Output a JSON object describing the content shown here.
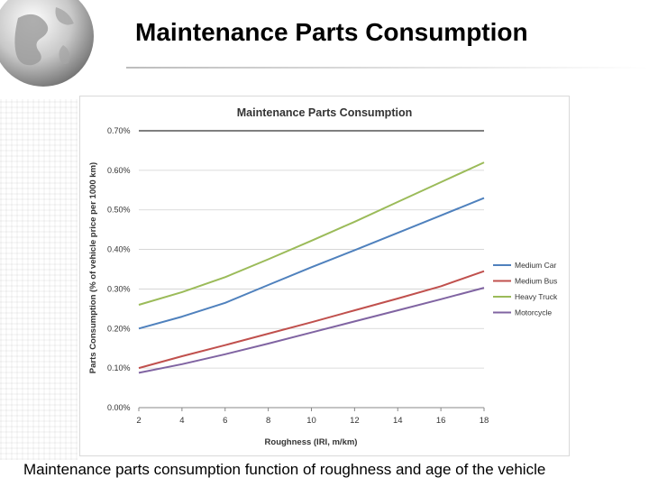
{
  "slide": {
    "title": "Maintenance Parts Consumption",
    "caption": "Maintenance parts consumption function of roughness and age of the vehicle"
  },
  "chart_data": {
    "type": "line",
    "title": "Maintenance Parts Consumption",
    "xlabel": "Roughness (IRI, m/km)",
    "ylabel": "Parts Consumption (% of vehicle price per 1000 km)",
    "xlim": [
      2,
      18
    ],
    "ylim": [
      0,
      0.7
    ],
    "x_ticks": [
      "2",
      "4",
      "6",
      "8",
      "10",
      "12",
      "14",
      "16",
      "18"
    ],
    "y_ticks": [
      "0.00%",
      "0.10%",
      "0.20%",
      "0.30%",
      "0.40%",
      "0.50%",
      "0.60%",
      "0.70%"
    ],
    "grid": true,
    "legend_position": "right",
    "x": [
      2,
      4,
      6,
      8,
      10,
      12,
      14,
      16,
      18
    ],
    "series": [
      {
        "name": "Medium Car",
        "color": "#4f81bd",
        "values": [
          0.2,
          0.23,
          0.265,
          0.31,
          0.355,
          0.398,
          0.442,
          0.486,
          0.53
        ]
      },
      {
        "name": "Medium Bus",
        "color": "#c0504d",
        "values": [
          0.1,
          0.13,
          0.158,
          0.187,
          0.216,
          0.246,
          0.276,
          0.307,
          0.345
        ]
      },
      {
        "name": "Heavy Truck",
        "color": "#9bbb59",
        "values": [
          0.26,
          0.292,
          0.33,
          0.375,
          0.422,
          0.47,
          0.52,
          0.57,
          0.62
        ]
      },
      {
        "name": "Motorcycle",
        "color": "#8064a2",
        "values": [
          0.088,
          0.11,
          0.135,
          0.162,
          0.19,
          0.218,
          0.246,
          0.274,
          0.303
        ]
      }
    ]
  }
}
